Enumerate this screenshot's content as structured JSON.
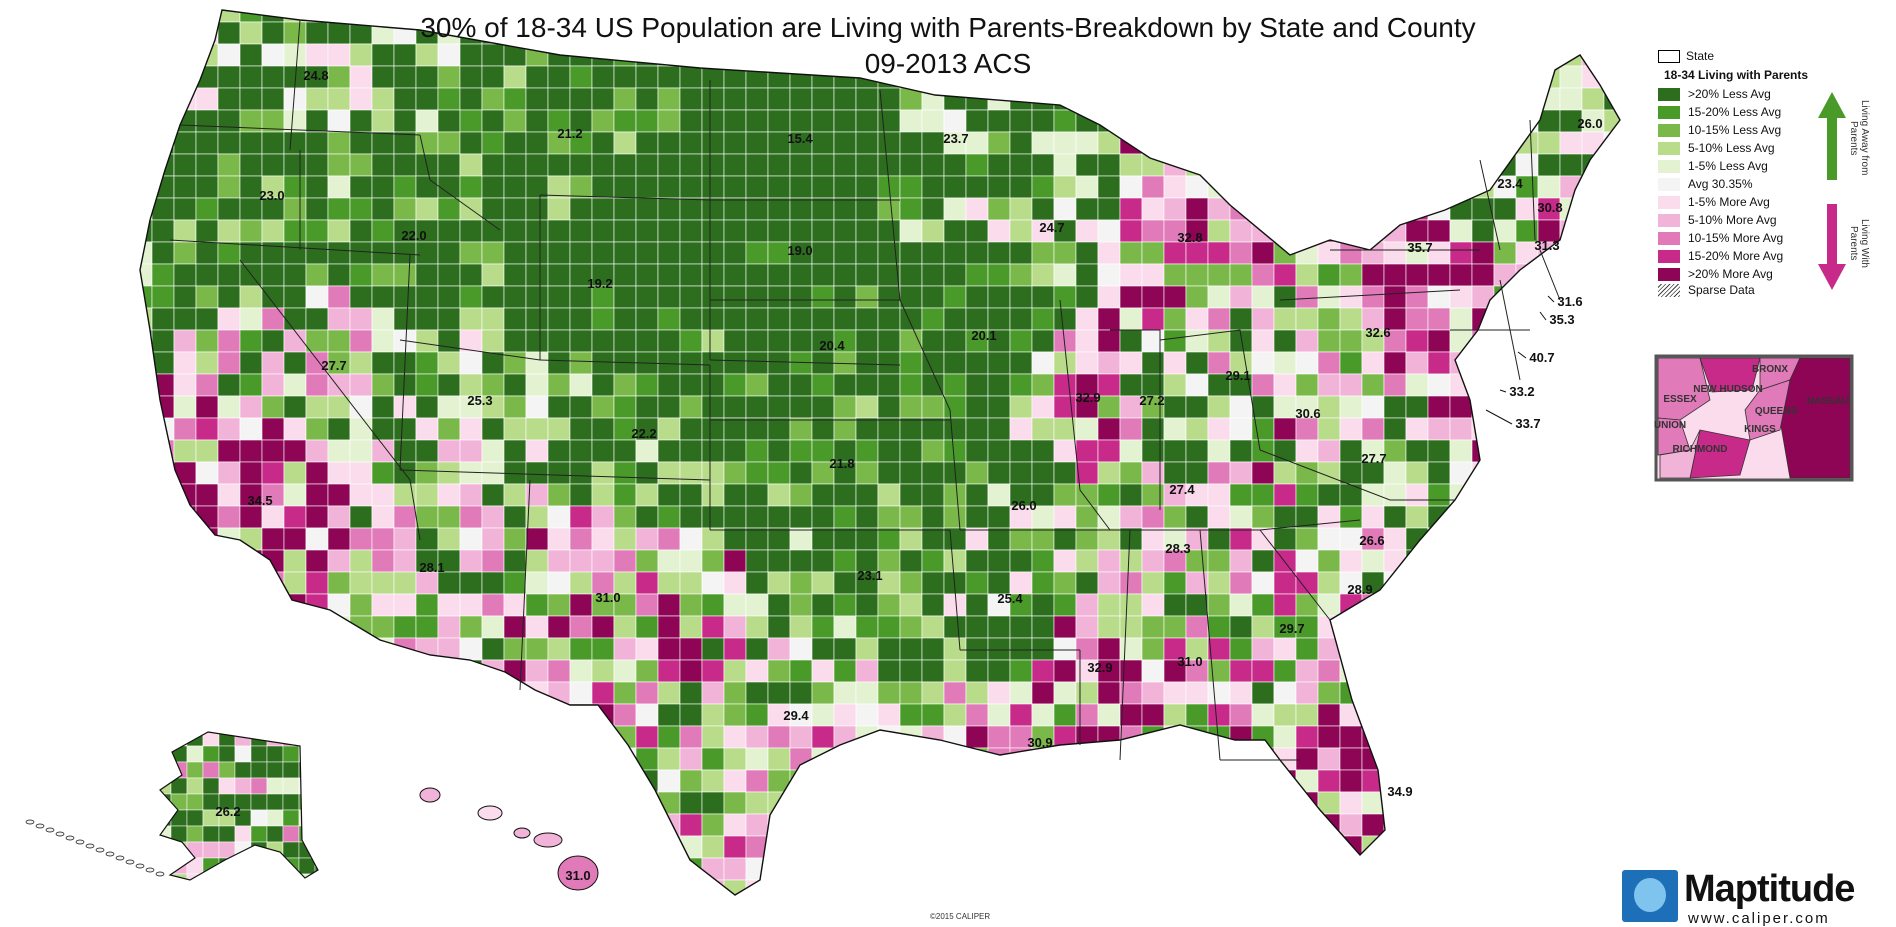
{
  "title": "30% of 18-34 US Population are Living with Parents-Breakdown by State and County",
  "subtitle": "09-2013 ACS",
  "legend": {
    "state_label": "State",
    "header": "18-34 Living with Parents",
    "items": [
      {
        "label": ">20% Less Avg",
        "color": "#2c6e1d"
      },
      {
        "label": "15-20% Less Avg",
        "color": "#4a9a2a"
      },
      {
        "label": "10-15% Less Avg",
        "color": "#7ab84a"
      },
      {
        "label": "5-10% Less Avg",
        "color": "#b8dc8a"
      },
      {
        "label": "1-5% Less Avg",
        "color": "#e3f2d0"
      },
      {
        "label": "Avg 30.35%",
        "color": "#f4f4f4"
      },
      {
        "label": "1-5% More Avg",
        "color": "#fbdcec"
      },
      {
        "label": "5-10% More Avg",
        "color": "#f2b3d8"
      },
      {
        "label": "10-15% More Avg",
        "color": "#e07ab9"
      },
      {
        "label": "15-20% More Avg",
        "color": "#c82a8a"
      },
      {
        "label": ">20% More Avg",
        "color": "#8e0556"
      }
    ],
    "sparse_label": "Sparse Data",
    "away_label": "Living Away from Parents",
    "with_label": "Living With Parents",
    "away_color": "#4a9a2a",
    "with_color": "#c82a8a"
  },
  "inset_labels": [
    "ESSEX",
    "NEW HUDSON",
    "BRONX",
    "NASSAU",
    "QUEENS",
    "UNION",
    "KINGS",
    "RICHMOND"
  ],
  "state_values": [
    {
      "state": "Washington",
      "value": "24.8"
    },
    {
      "state": "Oregon",
      "value": "23.0"
    },
    {
      "state": "California",
      "value": "34.5"
    },
    {
      "state": "Nevada",
      "value": "27.7"
    },
    {
      "state": "Idaho",
      "value": "22.0"
    },
    {
      "state": "Montana",
      "value": "21.2"
    },
    {
      "state": "Wyoming",
      "value": "19.2"
    },
    {
      "state": "Utah",
      "value": "25.3"
    },
    {
      "state": "Arizona",
      "value": "28.1"
    },
    {
      "state": "Colorado",
      "value": "22.2"
    },
    {
      "state": "New Mexico",
      "value": "31.0"
    },
    {
      "state": "North Dakota",
      "value": "15.4"
    },
    {
      "state": "South Dakota",
      "value": "19.0"
    },
    {
      "state": "Nebraska",
      "value": "20.4"
    },
    {
      "state": "Kansas",
      "value": "21.8"
    },
    {
      "state": "Oklahoma",
      "value": "23.1"
    },
    {
      "state": "Texas",
      "value": "29.4"
    },
    {
      "state": "Minnesota",
      "value": "23.7"
    },
    {
      "state": "Iowa",
      "value": "20.1"
    },
    {
      "state": "Missouri",
      "value": "26.0"
    },
    {
      "state": "Arkansas",
      "value": "25.4"
    },
    {
      "state": "Louisiana",
      "value": "30.9"
    },
    {
      "state": "Wisconsin",
      "value": "24.7"
    },
    {
      "state": "Illinois",
      "value": "32.9"
    },
    {
      "state": "Michigan",
      "value": "32.8"
    },
    {
      "state": "Indiana",
      "value": "27.2"
    },
    {
      "state": "Ohio",
      "value": "29.1"
    },
    {
      "state": "Kentucky",
      "value": "27.4"
    },
    {
      "state": "Tennessee",
      "value": "28.3"
    },
    {
      "state": "Mississippi",
      "value": "32.9"
    },
    {
      "state": "Alabama",
      "value": "31.0"
    },
    {
      "state": "Georgia",
      "value": "29.7"
    },
    {
      "state": "Florida",
      "value": "34.9"
    },
    {
      "state": "South Carolina",
      "value": "28.9"
    },
    {
      "state": "North Carolina",
      "value": "26.6"
    },
    {
      "state": "Virginia",
      "value": "27.7"
    },
    {
      "state": "West Virginia",
      "value": "30.6"
    },
    {
      "state": "Pennsylvania",
      "value": "32.6"
    },
    {
      "state": "New York",
      "value": "35.7"
    },
    {
      "state": "Vermont",
      "value": "23.4"
    },
    {
      "state": "New Hampshire",
      "value": "30.8"
    },
    {
      "state": "Maine",
      "value": "26.0"
    },
    {
      "state": "Massachusetts",
      "value": "31.3"
    },
    {
      "state": "Rhode Island",
      "value": "31.6"
    },
    {
      "state": "Connecticut",
      "value": "35.3"
    },
    {
      "state": "New Jersey",
      "value": "40.7"
    },
    {
      "state": "Delaware",
      "value": "33.2"
    },
    {
      "state": "Maryland",
      "value": "33.7"
    },
    {
      "state": "Alaska",
      "value": "26.2"
    },
    {
      "state": "Hawaii",
      "value": "31.0"
    }
  ],
  "copyright": "©2015 CALIPER",
  "logo": {
    "brand": "Maptitude",
    "url": "www.caliper.com"
  }
}
